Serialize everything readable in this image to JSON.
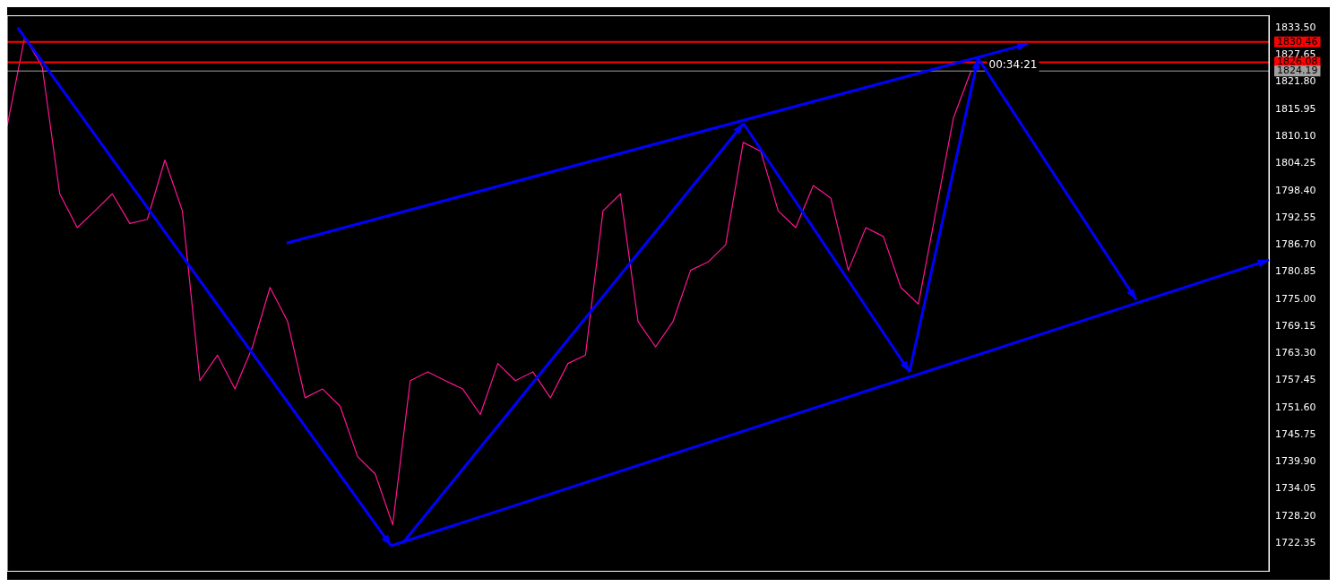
{
  "chart_data": {
    "type": "line",
    "categories": [
      null,
      null,
      null,
      null,
      null,
      null,
      null,
      null,
      null,
      null,
      null,
      null,
      null,
      null,
      null,
      null,
      null,
      null,
      null,
      null,
      null,
      null,
      null,
      null,
      null,
      null,
      null,
      null,
      null,
      null,
      null,
      null,
      null,
      null,
      null,
      null,
      null,
      null,
      null,
      null,
      null,
      null,
      null,
      null,
      null,
      null,
      null,
      null,
      null,
      null,
      null,
      null,
      null,
      null,
      null,
      null,
      null,
      null,
      null,
      null,
      null,
      null,
      null,
      null,
      null,
      null,
      null,
      null,
      null,
      null,
      null,
      null,
      null
    ],
    "series": [
      {
        "color": "#ff1493",
        "values": [
          1812.3,
          1831.5,
          1825.1,
          1797.7,
          1790.4,
          1794.0,
          1797.7,
          1791.3,
          1792.2,
          1805.0,
          1794.0,
          1757.4,
          1762.9,
          1755.6,
          1764.7,
          1777.5,
          1770.2,
          1753.7,
          1755.6,
          1751.9,
          1741.0,
          1737.3,
          1726.3,
          1757.4,
          1759.3,
          1757.4,
          1755.6,
          1750.1,
          1761.1,
          1757.4,
          1759.3,
          1753.7,
          1761.1,
          1762.9,
          1794.0,
          1797.7,
          1770.2,
          1764.7,
          1770.2,
          1781.2,
          1783.0,
          1786.7,
          1808.8,
          1806.9,
          1794.0,
          1790.4,
          1799.5,
          1796.8,
          1781.2,
          1790.4,
          1788.5,
          1777.5,
          1773.9,
          1794.0,
          1814.1,
          1824.2,
          null,
          null,
          null,
          null,
          null,
          null,
          null,
          null,
          null,
          null,
          null,
          null,
          null,
          null,
          null,
          null,
          null
        ]
      }
    ],
    "ylim": [
      1716.3,
      1836.1
    ],
    "yticks": [
      1722.35,
      {
        "value": 1728.2,
        "label": "1728.20"
      },
      1734.05,
      {
        "value": 1739.9,
        "label": "1739.90"
      },
      1745.75,
      {
        "value": 1751.6,
        "label": "1751.60"
      },
      1757.45,
      {
        "value": 1763.3,
        "label": "1763.30"
      },
      1769.15,
      {
        "value": 1775,
        "label": "1775.00"
      },
      1780.85,
      {
        "value": 1786.7,
        "label": "1786.70"
      },
      1792.55,
      {
        "value": 1798.4,
        "label": "1798.40"
      },
      1804.25,
      {
        "value": 1810.1,
        "label": "1810.10"
      },
      1815.95,
      {
        "value": 1821.8,
        "label": "1821.80"
      },
      1827.65,
      {
        "value": 1833.5,
        "label": "1833.50"
      }
    ],
    "ref_lines": [
      {
        "axis": "y",
        "value": 1830.46,
        "label": "1830.46",
        "color": "#ff0000"
      },
      {
        "axis": "y",
        "value": 1826.08,
        "label": "1826.08",
        "color": "#ff0000"
      },
      {
        "axis": "y",
        "value": 1824.19,
        "label": "1824.19",
        "color": "#a0a0a0"
      }
    ],
    "annotations": [
      "00:34:21"
    ],
    "grid": false,
    "legend": false,
    "tick_labels": "y",
    "marker": "none"
  }
}
